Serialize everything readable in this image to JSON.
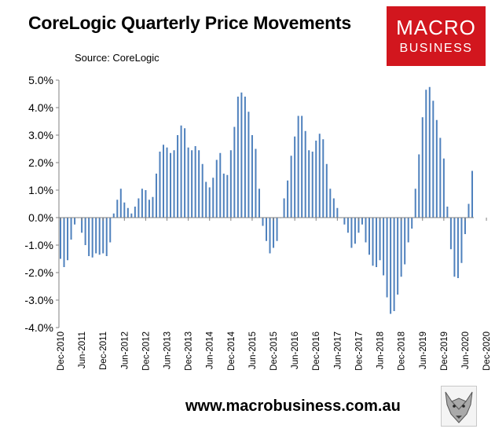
{
  "header": {
    "title": "CoreLogic Quarterly Price Movements",
    "source": "Source: CoreLogic"
  },
  "logo": {
    "line1": "MACRO",
    "line2": "BUSINESS",
    "background": "#d2161e"
  },
  "footer": {
    "url": "www.macrobusiness.com.au",
    "icon": "wolf-logo-icon"
  },
  "chart_data": {
    "type": "bar",
    "title": "CoreLogic Quarterly Price Movements",
    "bar_color": "#4f81bd",
    "ylim": [
      -4.0,
      5.0
    ],
    "y_ticks": [
      5.0,
      4.0,
      3.0,
      2.0,
      1.0,
      0.0,
      -1.0,
      -2.0,
      -3.0,
      -4.0
    ],
    "y_tick_labels": [
      "5.0%",
      "4.0%",
      "3.0%",
      "2.0%",
      "1.0%",
      "0.0%",
      "-1.0%",
      "-2.0%",
      "-3.0%",
      "-4.0%"
    ],
    "x_tick_labels": [
      "Dec-2010",
      "Jun-2011",
      "Dec-2011",
      "Jun-2012",
      "Dec-2012",
      "Jun-2013",
      "Dec-2013",
      "Jun-2014",
      "Dec-2014",
      "Jun-2015",
      "Dec-2015",
      "Jun-2016",
      "Dec-2016",
      "Jun-2017",
      "Dec-2017",
      "Jun-2018",
      "Dec-2018",
      "Jun-2019",
      "Dec-2019",
      "Jun-2020",
      "Dec-2020"
    ],
    "x_range": [
      "Dec-2010",
      "Dec-2020"
    ],
    "frequency": "monthly",
    "grid": false,
    "values": [
      -1.5,
      -1.8,
      -1.55,
      -0.8,
      -0.25,
      0.0,
      -0.55,
      -1.0,
      -1.4,
      -1.45,
      -1.3,
      -1.35,
      -1.3,
      -1.4,
      -0.9,
      0.15,
      0.65,
      1.05,
      0.55,
      0.35,
      0.15,
      0.4,
      0.7,
      1.05,
      1.0,
      0.65,
      0.75,
      1.6,
      2.4,
      2.65,
      2.55,
      2.35,
      2.45,
      3.0,
      3.35,
      3.25,
      2.55,
      2.45,
      2.6,
      2.45,
      1.95,
      1.3,
      1.1,
      1.45,
      2.1,
      2.35,
      1.6,
      1.55,
      2.45,
      3.3,
      4.4,
      4.55,
      4.4,
      3.85,
      3.0,
      2.5,
      1.05,
      -0.3,
      -0.85,
      -1.3,
      -1.1,
      -0.85,
      0.0,
      0.7,
      1.35,
      2.25,
      2.95,
      3.7,
      3.7,
      3.15,
      2.45,
      2.4,
      2.8,
      3.05,
      2.85,
      1.95,
      1.05,
      0.7,
      0.35,
      0.0,
      -0.25,
      -0.55,
      -1.1,
      -0.95,
      -0.55,
      -0.25,
      -0.9,
      -1.35,
      -1.75,
      -1.8,
      -1.55,
      -2.1,
      -2.9,
      -3.5,
      -3.4,
      -2.8,
      -2.15,
      -1.7,
      -0.9,
      -0.4,
      1.05,
      2.3,
      3.65,
      4.65,
      4.75,
      4.25,
      3.55,
      2.9,
      2.15,
      0.4,
      -1.15,
      -2.15,
      -2.2,
      -1.65,
      -0.6,
      0.5,
      1.7
    ]
  }
}
